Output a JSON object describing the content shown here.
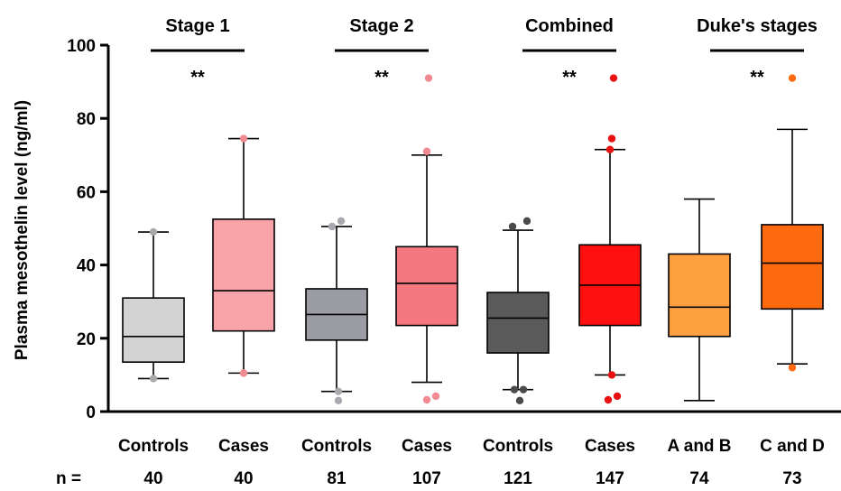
{
  "chart_data": {
    "type": "box",
    "ylabel": "Plasma mesothelin level (ng/ml)",
    "ylim": [
      0,
      100
    ],
    "yticks": [
      "0",
      "20",
      "40",
      "60",
      "80",
      "100"
    ],
    "n_label": "n =",
    "groups": [
      {
        "label": "Stage 1",
        "significance": "**"
      },
      {
        "label": "Stage 2",
        "significance": "**"
      },
      {
        "label": "Combined",
        "significance": "**"
      },
      {
        "label": "Duke's stages",
        "significance": "**"
      }
    ],
    "boxes": [
      {
        "category": "Controls",
        "n": "40",
        "group": 0,
        "color": "#d3d3d3",
        "q1": 13.5,
        "median": 20.5,
        "q3": 31,
        "whisker_low": 9,
        "whisker_high": 49,
        "outliers": [
          9,
          49
        ]
      },
      {
        "category": "Cases",
        "n": "40",
        "group": 0,
        "color": "#f8a3a8",
        "q1": 22,
        "median": 33,
        "q3": 52.5,
        "whisker_low": 10.5,
        "whisker_high": 74.5,
        "outliers": [
          10.5,
          74.5
        ]
      },
      {
        "category": "Controls",
        "n": "81",
        "group": 1,
        "color": "#9b9ba3",
        "q1": 19.5,
        "median": 26.5,
        "q3": 33.5,
        "whisker_low": 5.5,
        "whisker_high": 50.5,
        "outliers": [
          5.5,
          3,
          50.5,
          52
        ]
      },
      {
        "category": "Cases",
        "n": "107",
        "group": 1,
        "color": "#f5777f",
        "q1": 23.5,
        "median": 35,
        "q3": 45,
        "whisker_low": 8,
        "whisker_high": 70,
        "outliers": [
          3.2,
          4.2,
          71,
          91
        ]
      },
      {
        "category": "Controls",
        "n": "121",
        "group": 2,
        "color": "#5a5a5a",
        "q1": 16,
        "median": 25.5,
        "q3": 32.5,
        "whisker_low": 6,
        "whisker_high": 49.5,
        "outliers": [
          6,
          6,
          3,
          50.5,
          52
        ]
      },
      {
        "category": "Cases",
        "n": "147",
        "group": 2,
        "color": "#ff1010",
        "q1": 23.5,
        "median": 34.5,
        "q3": 45.5,
        "whisker_low": 10,
        "whisker_high": 71.5,
        "outliers": [
          10,
          3.2,
          4.2,
          71.5,
          74.5,
          91
        ]
      },
      {
        "category": "A and B",
        "n": "74",
        "group": 3,
        "color": "#ffa040",
        "q1": 20.5,
        "median": 28.5,
        "q3": 43,
        "whisker_low": 3,
        "whisker_high": 58,
        "outliers": []
      },
      {
        "category": "C and D",
        "n": "73",
        "group": 3,
        "color": "#ff6a10",
        "q1": 28,
        "median": 40.5,
        "q3": 51,
        "whisker_low": 13,
        "whisker_high": 77,
        "outliers": [
          12,
          91
        ]
      }
    ],
    "colors": {
      "axis": "#000000",
      "outlier_stage1_controls": "#a8a8a8",
      "outlier_stage1_cases": "#f28a92",
      "outlier_stage2_controls": "#a8a8ae",
      "outlier_stage2_cases": "#f28a92",
      "outlier_combined_controls": "#4a4a4a",
      "outlier_combined_cases": "#e81010",
      "outlier_duke_cd": "#ff6a10"
    }
  }
}
